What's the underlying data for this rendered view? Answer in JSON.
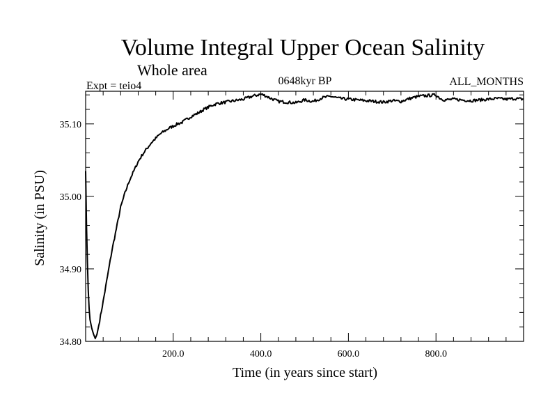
{
  "chart_data": {
    "type": "line",
    "title": "Volume Integral Upper Ocean Salinity",
    "subtitle": "Whole area",
    "experiment_label": "Expt = teio4",
    "period_label": "0648kyr BP",
    "months_label": "ALL_MONTHS",
    "xlabel": "Time (in years since start)",
    "ylabel": "Salinity (in PSU)",
    "xlim": [
      0,
      1000
    ],
    "ylim": [
      34.8,
      35.145
    ],
    "x_tick_labels": [
      "200.0",
      "400.0",
      "600.0",
      "800.0"
    ],
    "y_tick_labels": [
      "34.80",
      "34.90",
      "35.00",
      "35.10"
    ],
    "series": [
      {
        "name": "Volume integral salinity",
        "color": "#000000",
        "x": [
          0,
          2,
          4,
          6,
          8,
          10,
          14,
          18,
          22,
          26,
          30,
          40,
          50,
          60,
          70,
          80,
          90,
          100,
          110,
          120,
          130,
          140,
          150,
          160,
          170,
          180,
          190,
          200,
          210,
          220,
          230,
          240,
          250,
          260,
          270,
          280,
          290,
          300,
          320,
          340,
          360,
          380,
          400,
          410,
          420,
          440,
          460,
          480,
          500,
          520,
          540,
          560,
          580,
          600,
          620,
          640,
          660,
          680,
          700,
          720,
          740,
          760,
          780,
          800,
          810,
          820,
          840,
          860,
          880,
          900,
          920,
          940,
          960,
          980,
          1000
        ],
        "values": [
          35.035,
          34.96,
          34.91,
          34.87,
          34.845,
          34.83,
          34.818,
          34.81,
          34.804,
          34.81,
          34.822,
          34.855,
          34.89,
          34.925,
          34.955,
          34.985,
          35.005,
          35.022,
          35.035,
          35.048,
          35.058,
          35.066,
          35.074,
          35.08,
          35.086,
          35.09,
          35.094,
          35.097,
          35.1,
          35.102,
          35.106,
          35.11,
          35.113,
          35.116,
          35.12,
          35.123,
          35.126,
          35.128,
          35.13,
          35.132,
          35.134,
          35.138,
          35.141,
          35.139,
          35.136,
          35.131,
          35.13,
          35.129,
          35.133,
          35.131,
          35.136,
          35.138,
          35.135,
          35.134,
          35.133,
          35.132,
          35.131,
          35.13,
          35.132,
          35.131,
          35.135,
          35.138,
          35.139,
          35.14,
          35.135,
          35.133,
          35.134,
          35.133,
          35.132,
          35.133,
          35.134,
          35.135,
          35.134,
          35.135,
          35.134
        ]
      }
    ]
  }
}
